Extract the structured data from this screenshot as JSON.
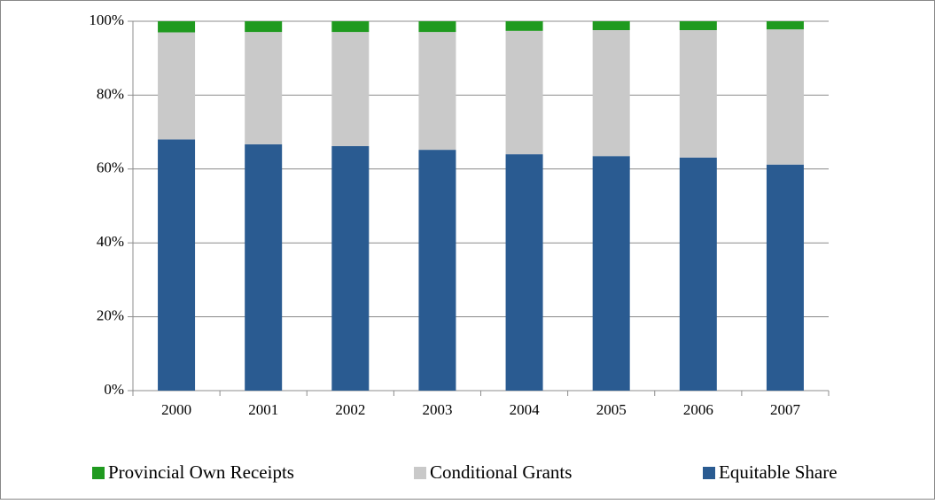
{
  "chart_data": {
    "type": "stacked_bar",
    "categories": [
      "2000",
      "2001",
      "2002",
      "2003",
      "2004",
      "2005",
      "2006",
      "2007"
    ],
    "series": [
      {
        "name": "Provincial Own Receipts",
        "color": "#1f9a1f",
        "values": [
          3,
          2.9,
          2.9,
          2.9,
          2.6,
          2.4,
          2.4,
          2.2
        ]
      },
      {
        "name": "Conditional Grants",
        "color": "#c9c9c9",
        "values": [
          29,
          30.4,
          30.9,
          31.9,
          33.4,
          34.1,
          34.5,
          36.6
        ]
      },
      {
        "name": "Equitable Share",
        "color": "#2a5b91",
        "values": [
          68,
          66.7,
          66.2,
          65.2,
          64,
          63.5,
          63.1,
          61.2
        ]
      }
    ],
    "stack_order": "bottom-up from last series",
    "ylim": [
      0,
      100
    ],
    "yticks": [
      {
        "value": 0,
        "label": "0%"
      },
      {
        "value": 20,
        "label": "20%"
      },
      {
        "value": 40,
        "label": "40%"
      },
      {
        "value": 60,
        "label": "60%"
      },
      {
        "value": 80,
        "label": "80%"
      },
      {
        "value": 100,
        "label": "100%"
      }
    ],
    "grid": true,
    "legend": "bottom"
  }
}
